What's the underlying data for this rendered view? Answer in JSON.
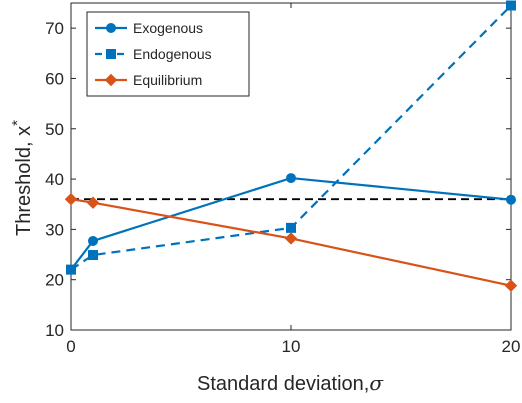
{
  "chart_data": {
    "type": "line",
    "title": "",
    "xlabel": "Standard deviation,",
    "xlabel_symbol": "σ",
    "ylabel": "Threshold, x",
    "ylabel_superscript": "*",
    "xlim": [
      0,
      20
    ],
    "ylim": [
      10,
      75
    ],
    "xticks": [
      0,
      10,
      20
    ],
    "yticks": [
      10,
      20,
      30,
      40,
      50,
      60,
      70
    ],
    "grid": false,
    "legend_position": "top-left",
    "reference_line": {
      "y": 36,
      "color": "#000000",
      "style": "dashed"
    },
    "series": [
      {
        "name": "Exogenous",
        "color": "#0072BD",
        "style": "solid",
        "marker": "circle",
        "x": [
          0,
          1,
          10,
          20
        ],
        "y": [
          22,
          27.7,
          40.2,
          35.9
        ]
      },
      {
        "name": "Endogenous",
        "color": "#0072BD",
        "style": "dashed",
        "marker": "square",
        "x": [
          0,
          1,
          10,
          20
        ],
        "y": [
          22,
          24.9,
          30.3,
          74.5
        ]
      },
      {
        "name": "Equilibrium",
        "color": "#D95319",
        "style": "solid",
        "marker": "diamond",
        "x": [
          0,
          1,
          10,
          20
        ],
        "y": [
          36,
          35.3,
          28.2,
          18.8
        ]
      }
    ]
  }
}
